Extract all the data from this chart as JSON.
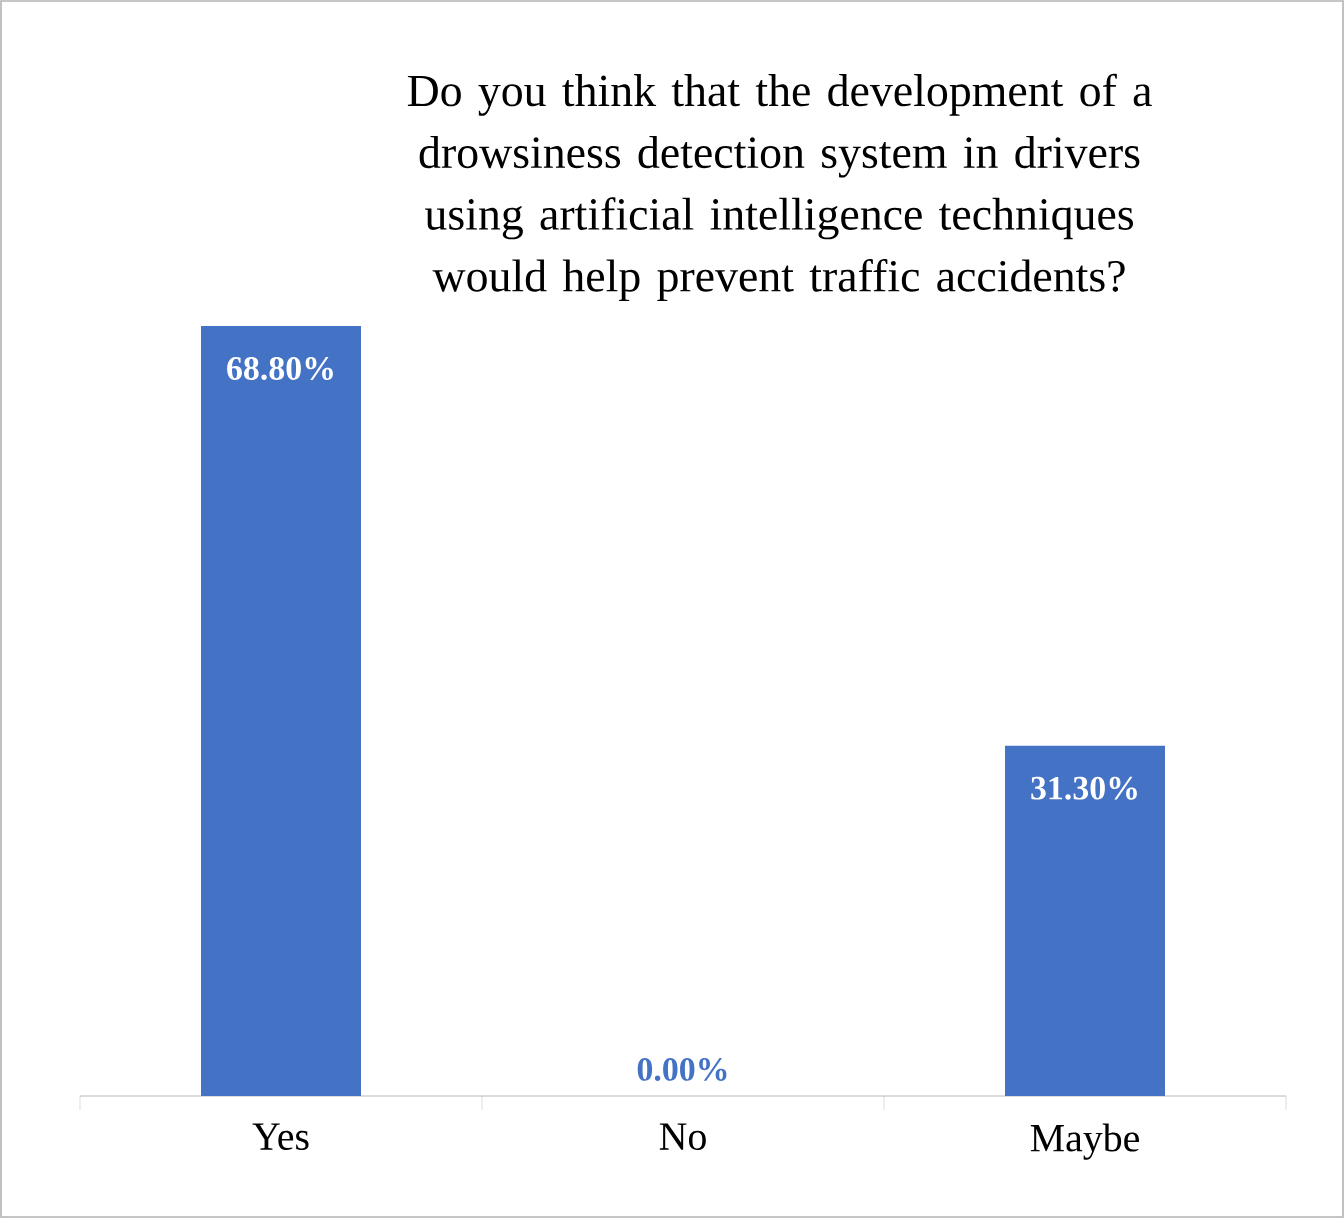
{
  "chart_data": {
    "type": "bar",
    "title": "Do you think that the development of a drowsiness detection system in drivers using artificial intelligence techniques would help prevent traffic accidents?",
    "categories": [
      "Yes",
      "No",
      "Maybe"
    ],
    "values": [
      68.8,
      0,
      31.3
    ],
    "value_labels": [
      "68.80%",
      "0.00%",
      "31.30%"
    ],
    "color": "#4472c4"
  }
}
